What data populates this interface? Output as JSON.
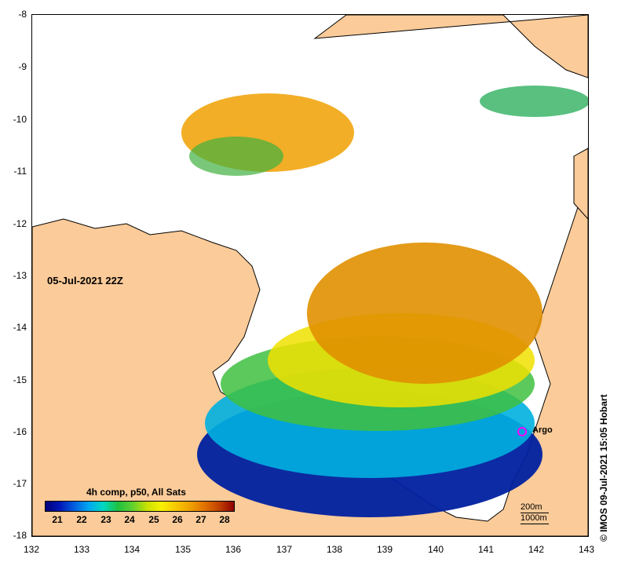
{
  "map": {
    "timestamp": "05-Jul-2021 22Z",
    "credit": "© IMOS 09-Jul-2021 15:05 Hobart",
    "argo_label": "Argo",
    "y_ticks": [
      "-8",
      "-9",
      "-10",
      "-11",
      "-12",
      "-13",
      "-14",
      "-15",
      "-16",
      "-17",
      "-18"
    ],
    "x_ticks": [
      "132",
      "133",
      "134",
      "135",
      "136",
      "137",
      "138",
      "139",
      "140",
      "141",
      "142",
      "143"
    ],
    "legend_title": "4h comp, p50, All Sats",
    "colorbar_labels": [
      "21",
      "22",
      "23",
      "24",
      "25",
      "26",
      "27",
      "28"
    ],
    "scale_200": "200m",
    "scale_1000": "1000m"
  },
  "colors": {
    "land": "#fbcb99",
    "cloud": "#ffffff",
    "cold": "#00007a",
    "warm": "#d07000",
    "argo": "#ff00ff"
  }
}
